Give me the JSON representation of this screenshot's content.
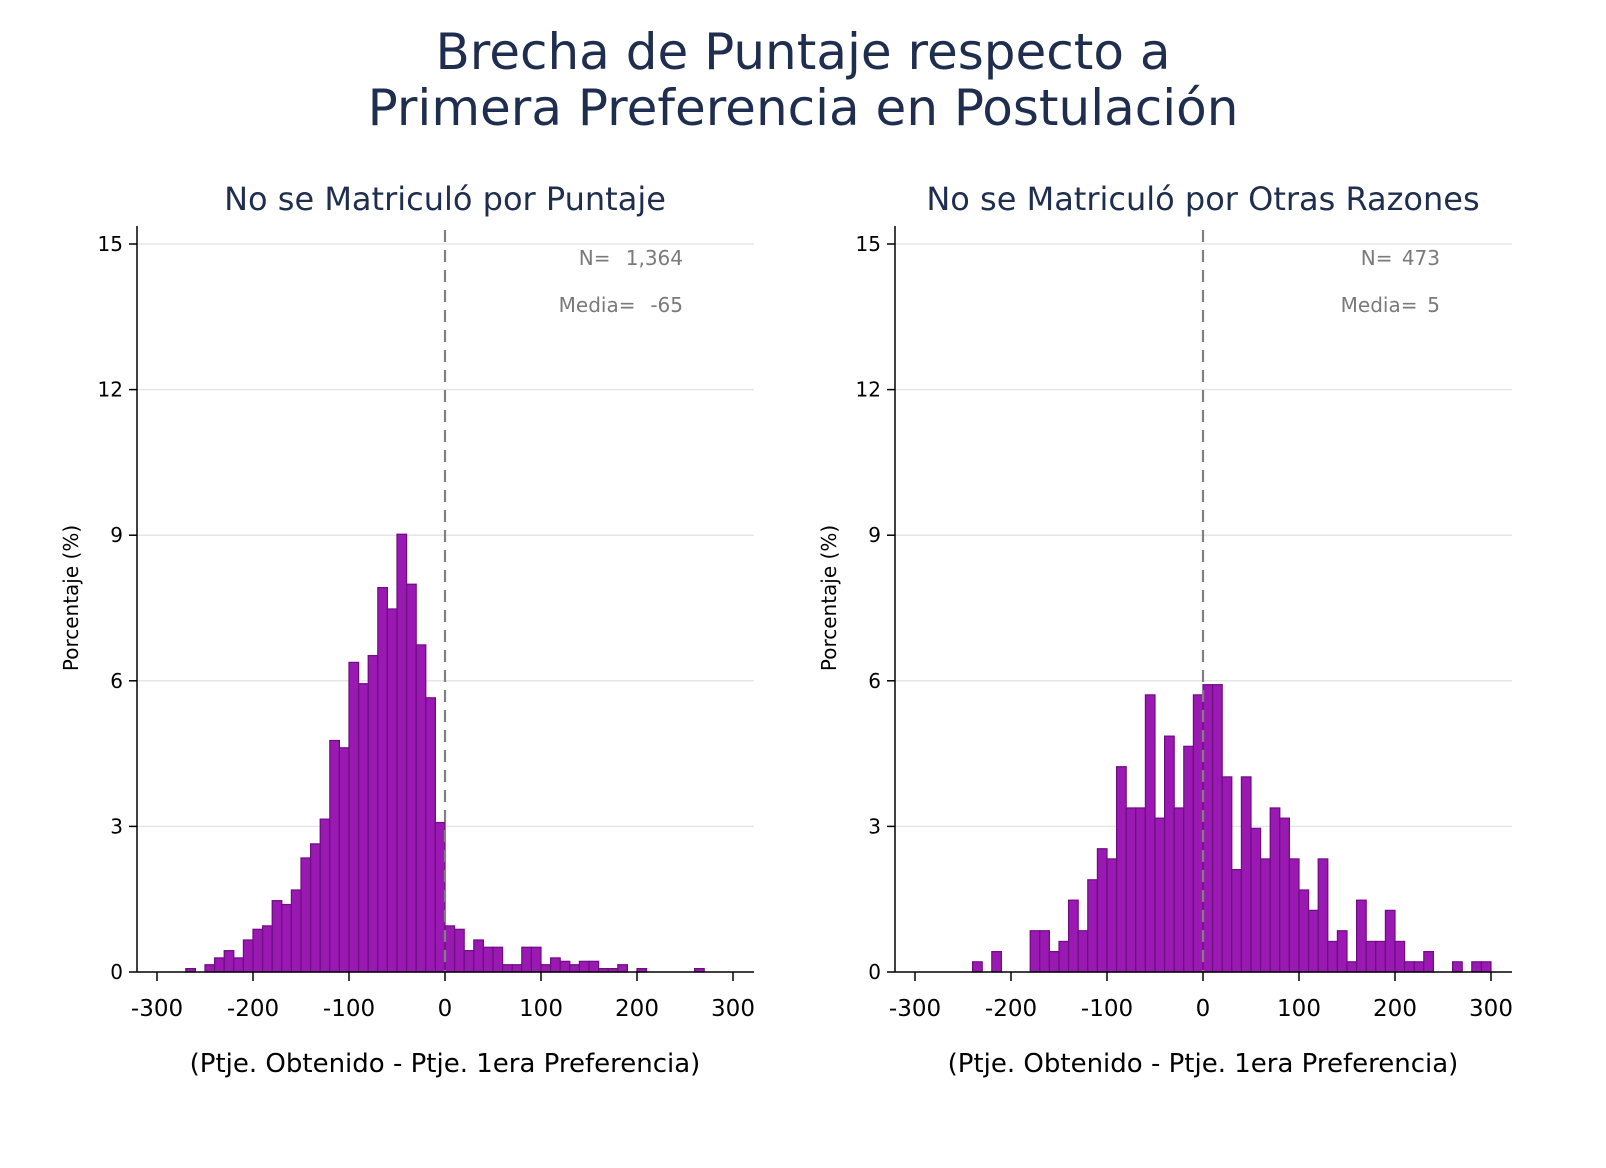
{
  "title": {
    "line1": "Brecha de Puntaje respecto a",
    "line2": "Primera Preferencia en Postulación"
  },
  "colors": {
    "bar_fill": "#9a19b2",
    "bar_edge": "#6e0c82",
    "title": "#1f2d4f",
    "annotation": "#7a7a7a",
    "grid": "#e6e6e6",
    "refline": "#808080"
  },
  "chart_data": [
    {
      "type": "bar",
      "subtype": "histogram",
      "title": "No se Matriculó por Puntaje",
      "xlabel": "(Ptje. Obtenido - Ptje. 1era Preferencia)",
      "ylabel": "Porcentaje (%)",
      "xlim": [
        -320,
        310
      ],
      "ylim": [
        0,
        15
      ],
      "xticks": [
        -300,
        -200,
        -100,
        0,
        100,
        200,
        300
      ],
      "xtick_labels": [
        "-300",
        "-200",
        "-100",
        "0",
        "100",
        "200",
        "300"
      ],
      "yticks": [
        0,
        3,
        6,
        9,
        12,
        15
      ],
      "ytick_labels": [
        "0",
        "3",
        "6",
        "9",
        "12",
        "15"
      ],
      "grid": "horizontal",
      "reference_line": {
        "x": 0,
        "style": "dashed"
      },
      "bin_width": 10,
      "bins_start": [
        -270,
        -250,
        -240,
        -230,
        -220,
        -210,
        -200,
        -190,
        -180,
        -170,
        -160,
        -150,
        -140,
        -130,
        -120,
        -110,
        -100,
        -90,
        -80,
        -70,
        -60,
        -50,
        -40,
        -30,
        -20,
        -10,
        0,
        10,
        20,
        30,
        40,
        50,
        60,
        70,
        80,
        90,
        100,
        110,
        120,
        130,
        140,
        150,
        160,
        170,
        180,
        190,
        200,
        260
      ],
      "values": [
        0.07,
        0.15,
        0.29,
        0.44,
        0.29,
        0.66,
        0.88,
        0.95,
        1.47,
        1.39,
        1.69,
        2.35,
        2.64,
        3.15,
        4.77,
        4.62,
        6.38,
        5.94,
        6.52,
        7.92,
        7.48,
        9.02,
        7.99,
        6.74,
        5.65,
        3.08,
        0.95,
        0.88,
        0.44,
        0.66,
        0.51,
        0.51,
        0.15,
        0.15,
        0.51,
        0.51,
        0.15,
        0.29,
        0.22,
        0.15,
        0.22,
        0.22,
        0.07,
        0.07,
        0.15,
        0.0,
        0.07,
        0.07
      ],
      "annotations": {
        "n_label": "N=",
        "n_value": "1,364",
        "mean_label": "Media=",
        "mean_value": "-65"
      }
    },
    {
      "type": "bar",
      "subtype": "histogram",
      "title": "No se Matriculó por Otras Razones",
      "xlabel": "(Ptje. Obtenido - Ptje. 1era Preferencia)",
      "ylabel": "Porcentaje (%)",
      "xlim": [
        -320,
        320
      ],
      "ylim": [
        0,
        15
      ],
      "xticks": [
        -300,
        -200,
        -100,
        0,
        100,
        200,
        300
      ],
      "xtick_labels": [
        "-300",
        "-200",
        "-100",
        "0",
        "100",
        "200",
        "300"
      ],
      "yticks": [
        0,
        3,
        6,
        9,
        12,
        15
      ],
      "ytick_labels": [
        "0",
        "3",
        "6",
        "9",
        "12",
        "15"
      ],
      "grid": "horizontal",
      "reference_line": {
        "x": 0,
        "style": "dashed"
      },
      "bin_width": 10,
      "bins_start": [
        -240,
        -220,
        -180,
        -170,
        -160,
        -150,
        -140,
        -130,
        -120,
        -110,
        -100,
        -90,
        -80,
        -70,
        -60,
        -50,
        -40,
        -30,
        -20,
        -10,
        0,
        10,
        20,
        30,
        40,
        50,
        60,
        70,
        80,
        90,
        100,
        110,
        120,
        130,
        140,
        150,
        160,
        170,
        180,
        190,
        200,
        210,
        220,
        230,
        260,
        270,
        280,
        290
      ],
      "values": [
        0.21,
        0.42,
        0.85,
        0.85,
        0.42,
        0.63,
        1.48,
        0.85,
        1.9,
        2.54,
        2.33,
        4.23,
        3.38,
        3.38,
        5.71,
        3.17,
        4.86,
        3.38,
        4.65,
        5.71,
        5.92,
        5.92,
        4.02,
        2.11,
        4.02,
        2.96,
        2.33,
        3.38,
        3.17,
        2.33,
        1.69,
        1.27,
        2.33,
        0.63,
        0.85,
        0.21,
        1.48,
        0.63,
        0.63,
        1.27,
        0.63,
        0.21,
        0.21,
        0.42,
        0.21,
        0.0,
        0.21,
        0.21
      ],
      "annotations": {
        "n_label": "N=",
        "n_value": "473",
        "mean_label": "Media=",
        "mean_value": "5"
      }
    }
  ]
}
